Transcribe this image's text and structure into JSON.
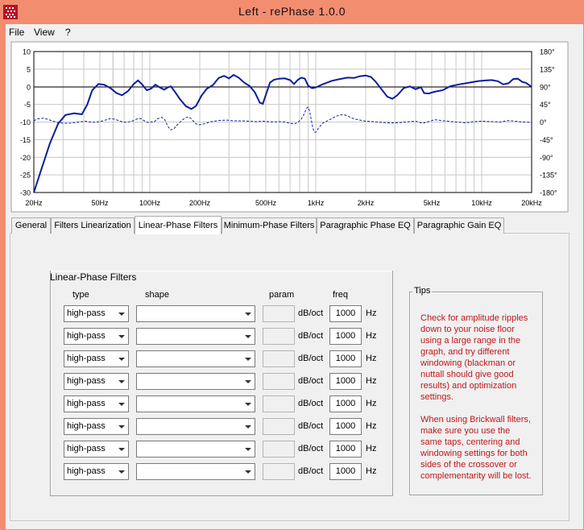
{
  "window": {
    "title": "Left  -  rePhase 1.0.0",
    "titlebar_color": "#f28d70"
  },
  "menu": {
    "items": [
      "File",
      "View",
      "?"
    ]
  },
  "graph": {
    "y_left_ticks": [
      "10",
      "5",
      "0",
      "-5",
      "-10",
      "-15",
      "-20",
      "-25",
      "-30"
    ],
    "y_right_ticks": [
      "180°",
      "135°",
      "90°",
      "45°",
      "0°",
      "-45°",
      "-90°",
      "-135°",
      "-180°"
    ],
    "x_labels": [
      {
        "f": 20,
        "label": "20Hz"
      },
      {
        "f": 50,
        "label": "50Hz"
      },
      {
        "f": 100,
        "label": "100Hz"
      },
      {
        "f": 200,
        "label": "200Hz"
      },
      {
        "f": 500,
        "label": "500Hz"
      },
      {
        "f": 1000,
        "label": "1kHz"
      },
      {
        "f": 2000,
        "label": "2kHz"
      },
      {
        "f": 5000,
        "label": "5kHz"
      },
      {
        "f": 10000,
        "label": "10kHz"
      },
      {
        "f": 20000,
        "label": "20kHz"
      }
    ],
    "line_color": "#0a1e9a",
    "magnitude_db": [
      [
        20,
        -30
      ],
      [
        22,
        -24
      ],
      [
        25,
        -16
      ],
      [
        28,
        -10.5
      ],
      [
        31,
        -8
      ],
      [
        35,
        -7.5
      ],
      [
        39,
        -7.8
      ],
      [
        42,
        -5
      ],
      [
        45,
        -1
      ],
      [
        49,
        0.8
      ],
      [
        53,
        0.6
      ],
      [
        58,
        -0.4
      ],
      [
        63,
        -1.8
      ],
      [
        68,
        -2.4
      ],
      [
        74,
        -1.2
      ],
      [
        80,
        0.8
      ],
      [
        85,
        1.8
      ],
      [
        90,
        0.6
      ],
      [
        96,
        -1
      ],
      [
        102,
        -0.5
      ],
      [
        108,
        0.6
      ],
      [
        115,
        -0.2
      ],
      [
        122,
        -0.8
      ],
      [
        128,
        -0.2
      ],
      [
        134,
        0.1
      ],
      [
        142,
        -1.5
      ],
      [
        152,
        -3.5
      ],
      [
        165,
        -5.5
      ],
      [
        178,
        -6.3
      ],
      [
        190,
        -5.4
      ],
      [
        205,
        -2.5
      ],
      [
        220,
        -0.6
      ],
      [
        240,
        0.5
      ],
      [
        260,
        2.5
      ],
      [
        280,
        3.1
      ],
      [
        300,
        2.4
      ],
      [
        320,
        3.4
      ],
      [
        345,
        2.5
      ],
      [
        370,
        1.2
      ],
      [
        400,
        0.2
      ],
      [
        430,
        -1.6
      ],
      [
        460,
        -4.5
      ],
      [
        480,
        -4.8
      ],
      [
        500,
        -2.3
      ],
      [
        530,
        1.2
      ],
      [
        560,
        2
      ],
      [
        600,
        2.3
      ],
      [
        650,
        2.4
      ],
      [
        700,
        1.9
      ],
      [
        740,
        0.8
      ],
      [
        780,
        2
      ],
      [
        820,
        2.6
      ],
      [
        860,
        2.3
      ],
      [
        900,
        0.3
      ],
      [
        950,
        -0.4
      ],
      [
        1000,
        -0.2
      ],
      [
        1100,
        0.7
      ],
      [
        1250,
        1.7
      ],
      [
        1400,
        2.2
      ],
      [
        1550,
        2.6
      ],
      [
        1700,
        2.5
      ],
      [
        1850,
        3
      ],
      [
        2000,
        3.2
      ],
      [
        2150,
        2.8
      ],
      [
        2300,
        1.4
      ],
      [
        2500,
        -0.8
      ],
      [
        2700,
        -2.8
      ],
      [
        2900,
        -3.4
      ],
      [
        3100,
        -2.4
      ],
      [
        3400,
        -0.3
      ],
      [
        3700,
        0.1
      ],
      [
        4000,
        -0.7
      ],
      [
        4300,
        -0.1
      ],
      [
        4500,
        -1.8
      ],
      [
        4800,
        -1.9
      ],
      [
        5200,
        -1.4
      ],
      [
        5800,
        -1
      ],
      [
        6500,
        0.2
      ],
      [
        7500,
        0.8
      ],
      [
        8500,
        1.2
      ],
      [
        9500,
        1.6
      ],
      [
        10500,
        1.8
      ],
      [
        11500,
        1.9
      ],
      [
        12500,
        1.6
      ],
      [
        13500,
        0.7
      ],
      [
        14500,
        1
      ],
      [
        15500,
        2.2
      ],
      [
        16500,
        2.3
      ],
      [
        17500,
        1.4
      ],
      [
        18500,
        1.1
      ],
      [
        20000,
        0
      ]
    ],
    "phase_deg": [
      [
        20,
        3
      ],
      [
        21,
        8
      ],
      [
        23,
        10
      ],
      [
        25,
        5
      ],
      [
        27,
        0
      ],
      [
        30,
        -3
      ],
      [
        33,
        -3
      ],
      [
        37,
        0
      ],
      [
        41,
        2
      ],
      [
        45,
        -1
      ],
      [
        50,
        1
      ],
      [
        55,
        6
      ],
      [
        58,
        9
      ],
      [
        62,
        7
      ],
      [
        66,
        2
      ],
      [
        72,
        -1
      ],
      [
        78,
        2
      ],
      [
        84,
        8
      ],
      [
        88,
        9
      ],
      [
        92,
        4
      ],
      [
        97,
        -1
      ],
      [
        101,
        0
      ],
      [
        106,
        0
      ],
      [
        111,
        8
      ],
      [
        118,
        12
      ],
      [
        123,
        6
      ],
      [
        128,
        -10
      ],
      [
        133,
        -20
      ],
      [
        139,
        -18
      ],
      [
        146,
        -8
      ],
      [
        155,
        3
      ],
      [
        163,
        10
      ],
      [
        170,
        13
      ],
      [
        176,
        10
      ],
      [
        182,
        3
      ],
      [
        190,
        -5
      ],
      [
        200,
        -7
      ],
      [
        215,
        -4
      ],
      [
        235,
        1
      ],
      [
        260,
        4
      ],
      [
        290,
        5
      ],
      [
        320,
        3
      ],
      [
        360,
        3
      ],
      [
        400,
        2
      ],
      [
        440,
        1
      ],
      [
        480,
        2
      ],
      [
        520,
        1
      ],
      [
        560,
        0
      ],
      [
        600,
        1
      ],
      [
        650,
        0
      ],
      [
        700,
        -3
      ],
      [
        740,
        -5
      ],
      [
        780,
        -1
      ],
      [
        820,
        8
      ],
      [
        850,
        20
      ],
      [
        880,
        35
      ],
      [
        900,
        38
      ],
      [
        920,
        27
      ],
      [
        940,
        5
      ],
      [
        960,
        -15
      ],
      [
        980,
        -26
      ],
      [
        1000,
        -26
      ],
      [
        1040,
        -15
      ],
      [
        1100,
        -3
      ],
      [
        1200,
        5
      ],
      [
        1300,
        13
      ],
      [
        1400,
        19
      ],
      [
        1500,
        18
      ],
      [
        1600,
        13
      ],
      [
        1700,
        8
      ],
      [
        1850,
        5
      ],
      [
        2000,
        2
      ],
      [
        2200,
        1
      ],
      [
        2500,
        -1
      ],
      [
        2800,
        -2
      ],
      [
        3100,
        -2
      ],
      [
        3500,
        0
      ],
      [
        4000,
        2
      ],
      [
        4400,
        -3
      ],
      [
        4800,
        1
      ],
      [
        5200,
        6
      ],
      [
        5700,
        4
      ],
      [
        6300,
        2
      ],
      [
        7000,
        0
      ],
      [
        8000,
        -2
      ],
      [
        9000,
        1
      ],
      [
        10000,
        2
      ],
      [
        11500,
        1
      ],
      [
        13000,
        0
      ],
      [
        14500,
        4
      ],
      [
        16000,
        2
      ],
      [
        17500,
        0
      ],
      [
        20000,
        -1
      ]
    ]
  },
  "tabs": [
    {
      "label": "General",
      "active": false
    },
    {
      "label": "Filters Linearization",
      "active": false
    },
    {
      "label": "Linear-Phase Filters",
      "active": true
    },
    {
      "label": "Minimum-Phase Filters",
      "active": false
    },
    {
      "label": "Paragraphic Phase EQ",
      "active": false
    },
    {
      "label": "Paragraphic Gain EQ",
      "active": false
    }
  ],
  "linear_phase": {
    "title": "Linear-Phase Filters",
    "headers": {
      "type": "type",
      "shape": "shape",
      "param": "param",
      "freq": "freq"
    },
    "unit_param": "dB/oct",
    "unit_freq": "Hz",
    "rows": [
      {
        "type": "high-pass",
        "shape": "",
        "freq": "1000"
      },
      {
        "type": "high-pass",
        "shape": "",
        "freq": "1000"
      },
      {
        "type": "high-pass",
        "shape": "",
        "freq": "1000"
      },
      {
        "type": "high-pass",
        "shape": "",
        "freq": "1000"
      },
      {
        "type": "high-pass",
        "shape": "",
        "freq": "1000"
      },
      {
        "type": "high-pass",
        "shape": "",
        "freq": "1000"
      },
      {
        "type": "high-pass",
        "shape": "",
        "freq": "1000"
      },
      {
        "type": "high-pass",
        "shape": "",
        "freq": "1000"
      }
    ]
  },
  "tips": {
    "label": "Tips",
    "paragraph1": [
      "Check for amplitude ripples",
      "down to your noise floor",
      "using a large range in the",
      "graph, and try different",
      "windowing (blackman or",
      "nuttall should give good",
      "results) and optimization",
      "settings."
    ],
    "paragraph2": [
      "When using Brickwall filters,",
      "make sure you use the",
      "same taps, centering and",
      "windowing settings for both",
      "sides of the crossover or",
      "complementarity will be lost."
    ],
    "text_color": "#c0161b"
  }
}
